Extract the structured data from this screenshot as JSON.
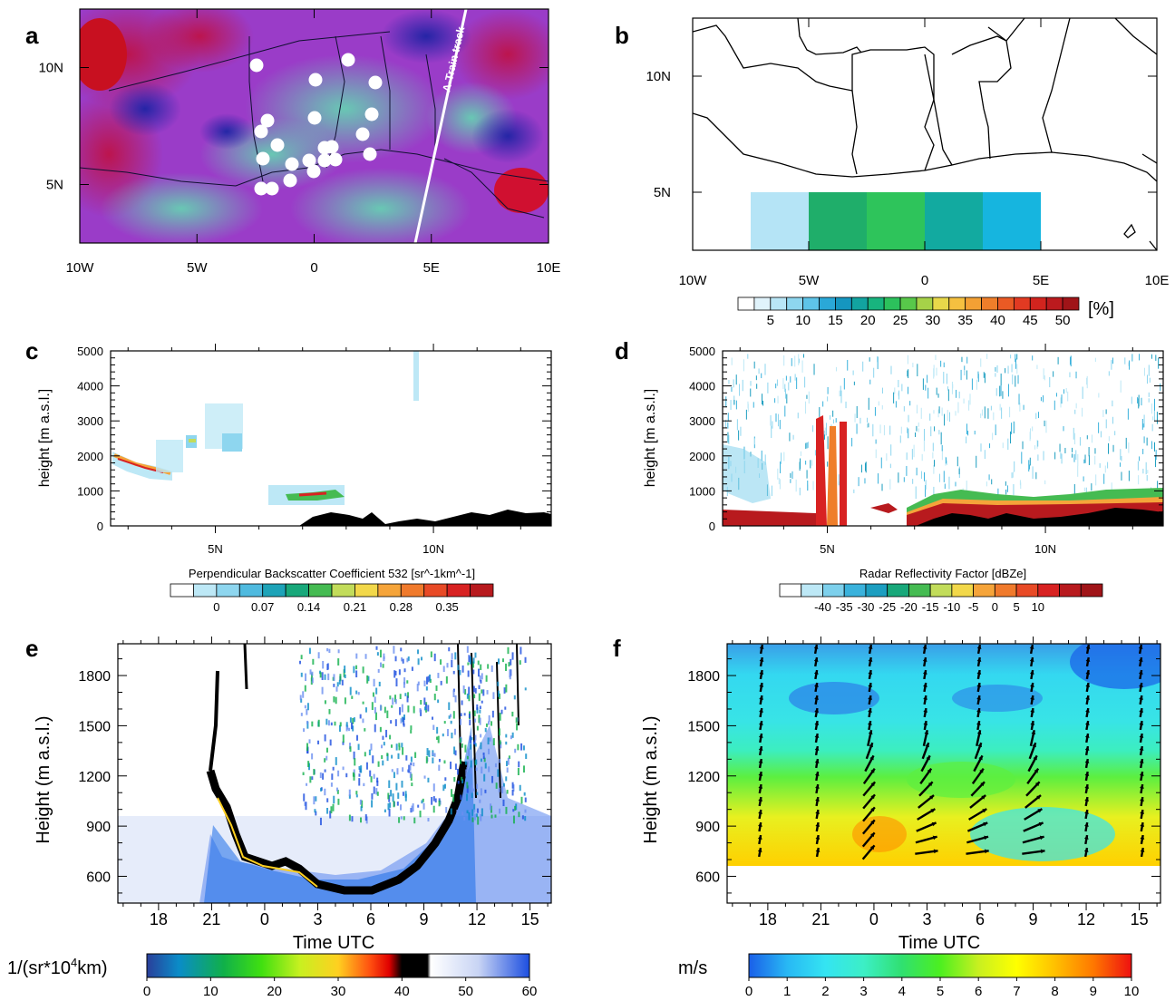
{
  "panels": {
    "a": {
      "letter": "a",
      "xticks": [
        "10W",
        "5W",
        "0",
        "5E",
        "10E"
      ],
      "yticks": [
        "5N",
        "10N"
      ],
      "track_label": "A-Train track"
    },
    "b": {
      "letter": "b",
      "xticks": [
        "10W",
        "5W",
        "0",
        "5E",
        "10E"
      ],
      "yticks": [
        "5N",
        "10N"
      ],
      "colorbar": {
        "ticks": [
          "5",
          "10",
          "15",
          "20",
          "25",
          "30",
          "35",
          "40",
          "45",
          "50"
        ],
        "unit": "[%]",
        "colors": [
          "#ffffff",
          "#e0f3fb",
          "#b9e6f6",
          "#8ed6ef",
          "#5ec4e8",
          "#2aa8d8",
          "#1596c0",
          "#12a4a0",
          "#18b47e",
          "#2cc15c",
          "#58c84a",
          "#a6d248",
          "#e8d84a",
          "#f5c040",
          "#f3a034",
          "#ef7e2a",
          "#ea5a24",
          "#e23a22",
          "#d2241e",
          "#bb1a1e",
          "#a01418"
        ]
      },
      "chart_data": {
        "type": "heatmap",
        "title": "",
        "xlabel": "",
        "ylabel": "",
        "x_bands": [
          "7.5W-5W",
          "5W-2.5W",
          "2.5W-0",
          "0-2.5E",
          "2.5E-5E"
        ],
        "lat_range": [
          "2.5N",
          "5N"
        ],
        "values_percent": [
          7,
          22,
          24,
          19,
          12
        ],
        "colors": [
          "#b5e4f6",
          "#1fae6a",
          "#2ec45b",
          "#12aaa0",
          "#16b5df"
        ]
      }
    },
    "c": {
      "letter": "c",
      "ylabel": "height [m a.s.l.]",
      "yticks": [
        "0",
        "1000",
        "2000",
        "3000",
        "4000",
        "5000"
      ],
      "xticks": [
        "5N",
        "10N"
      ],
      "colorbar": {
        "title": "Perpendicular Backscatter Coefficient 532 [sr^-1km^-1]",
        "ticks": [
          "0",
          "0.07",
          "0.14",
          "0.21",
          "0.28",
          "0.35"
        ],
        "colors": [
          "#ffffff",
          "#bde8f6",
          "#8ed6ef",
          "#4fbadf",
          "#1da3b8",
          "#18a87a",
          "#45bb52",
          "#c2dc5a",
          "#f2d84a",
          "#f5a43a",
          "#f07a2c",
          "#e84a26",
          "#d82222",
          "#b81a1e"
        ]
      }
    },
    "d": {
      "letter": "d",
      "ylabel": "height  [m a.s.l.]",
      "yticks": [
        "0",
        "1000",
        "2000",
        "3000",
        "4000",
        "5000"
      ],
      "xticks": [
        "5N",
        "10N"
      ],
      "colorbar": {
        "title": "Radar Reflectivity Factor [dBZe]",
        "ticks": [
          "-40",
          "-35",
          "-30",
          "-25",
          "-20",
          "-15",
          "-10",
          "-5",
          "0",
          "5",
          "10"
        ],
        "colors": [
          "#ffffff",
          "#bde8f6",
          "#7dd0ec",
          "#3ab2dc",
          "#1c9ec0",
          "#18a87a",
          "#45bb52",
          "#c2dc5a",
          "#f2d84a",
          "#f5a43a",
          "#f07a2c",
          "#e84a26",
          "#d82222",
          "#b81a1e",
          "#a01418"
        ]
      }
    },
    "e": {
      "letter": "e",
      "ylabel": "Height (m a.s.l.)",
      "xlabel": "Time UTC",
      "yticks": [
        "600",
        "900",
        "1200",
        "1500",
        "1800"
      ],
      "xticks": [
        "18",
        "21",
        "0",
        "3",
        "6",
        "9",
        "12",
        "15"
      ],
      "colorbar": {
        "unit_prefix": "1/(sr*10",
        "unit_sup": "4",
        "unit_suffix": "km)",
        "ticks": [
          "0",
          "10",
          "20",
          "30",
          "40",
          "50",
          "60"
        ],
        "stops": [
          {
            "v": 0,
            "c": "#2a3f9a"
          },
          {
            "v": 5,
            "c": "#0a8cc8"
          },
          {
            "v": 12,
            "c": "#10b04a"
          },
          {
            "v": 18,
            "c": "#40e010"
          },
          {
            "v": 24,
            "c": "#c8f020"
          },
          {
            "v": 30,
            "c": "#ffd020"
          },
          {
            "v": 35,
            "c": "#ff5010"
          },
          {
            "v": 38,
            "c": "#e00000"
          },
          {
            "v": 40,
            "c": "#000000"
          },
          {
            "v": 44,
            "c": "#000000"
          },
          {
            "v": 44.5,
            "c": "#ffffff"
          },
          {
            "v": 52,
            "c": "#c8d4f4"
          },
          {
            "v": 60,
            "c": "#1c4ee0"
          }
        ]
      }
    },
    "f": {
      "letter": "f",
      "ylabel": "Height (m a.s.l.)",
      "xlabel": "Time UTC",
      "yticks": [
        "600",
        "900",
        "1200",
        "1500",
        "1800"
      ],
      "xticks": [
        "18",
        "21",
        "0",
        "3",
        "6",
        "9",
        "12",
        "15"
      ],
      "colorbar": {
        "unit": "m/s",
        "ticks": [
          "0",
          "1",
          "2",
          "3",
          "4",
          "5",
          "6",
          "7",
          "8",
          "9",
          "10"
        ],
        "stops": [
          {
            "v": 0,
            "c": "#1a5fe8"
          },
          {
            "v": 1,
            "c": "#28b8f4"
          },
          {
            "v": 2,
            "c": "#34e4f2"
          },
          {
            "v": 3,
            "c": "#3cefc6"
          },
          {
            "v": 4,
            "c": "#30e070"
          },
          {
            "v": 5,
            "c": "#4cef20"
          },
          {
            "v": 6,
            "c": "#c8f020"
          },
          {
            "v": 7,
            "c": "#ffff00"
          },
          {
            "v": 8,
            "c": "#ffc000"
          },
          {
            "v": 9,
            "c": "#ff7800"
          },
          {
            "v": 10,
            "c": "#ee1010"
          }
        ]
      }
    }
  }
}
